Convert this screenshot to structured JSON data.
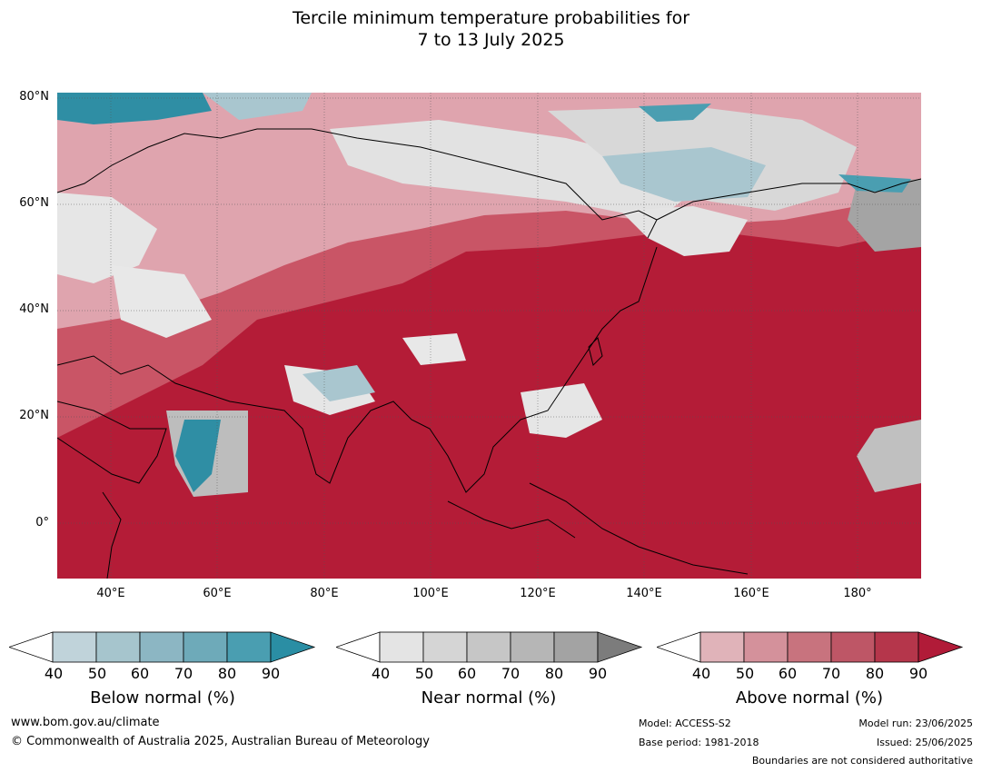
{
  "title": {
    "line1": "Tercile minimum temperature probabilities for",
    "line2": "7 to 13 July 2025"
  },
  "map": {
    "lat_labels": [
      "80°N",
      "60°N",
      "40°N",
      "20°N",
      "0°"
    ],
    "lon_labels": [
      "40°E",
      "60°E",
      "80°E",
      "100°E",
      "120°E",
      "140°E",
      "160°E",
      "180°"
    ],
    "colors": {
      "above": "#b41c37",
      "above_mid": "#c95566",
      "above_light": "#dfa4ae",
      "near": "#d8d8d8",
      "near_dark": "#a4a4a4",
      "below": "#a9c6cf",
      "below_dark": "#2f8ea4",
      "coast": "#000000",
      "border": "#808080"
    }
  },
  "colorbars": [
    {
      "name": "below",
      "title": "Below normal (%)",
      "ticks": [
        "40",
        "50",
        "60",
        "70",
        "80",
        "90"
      ],
      "colors": [
        "#ffffff",
        "#c0d3da",
        "#a6c5cd",
        "#8cb6c3",
        "#6eaab9",
        "#4a9eb1",
        "#2a8ea4"
      ]
    },
    {
      "name": "near",
      "title": "Near normal (%)",
      "ticks": [
        "40",
        "50",
        "60",
        "70",
        "80",
        "90"
      ],
      "colors": [
        "#ffffff",
        "#e4e4e4",
        "#d5d5d5",
        "#c6c6c6",
        "#b6b6b6",
        "#a3a3a3",
        "#7c7c7c"
      ]
    },
    {
      "name": "above",
      "title": "Above normal (%)",
      "ticks": [
        "40",
        "50",
        "60",
        "70",
        "80",
        "90"
      ],
      "colors": [
        "#ffffff",
        "#e0b3b9",
        "#d4919b",
        "#c8737e",
        "#be5666",
        "#b5364b",
        "#b11b38"
      ]
    }
  ],
  "footer": {
    "url": "www.bom.gov.au/climate",
    "copyright": "© Commonwealth of Australia 2025, Australian Bureau of Meteorology",
    "model": "Model: ACCESS-S2",
    "base_period": "Base period: 1981-2018",
    "model_run": "Model run: 23/06/2025",
    "issued": "Issued: 25/06/2025",
    "disclaimer": "Boundaries are not considered authoritative"
  }
}
